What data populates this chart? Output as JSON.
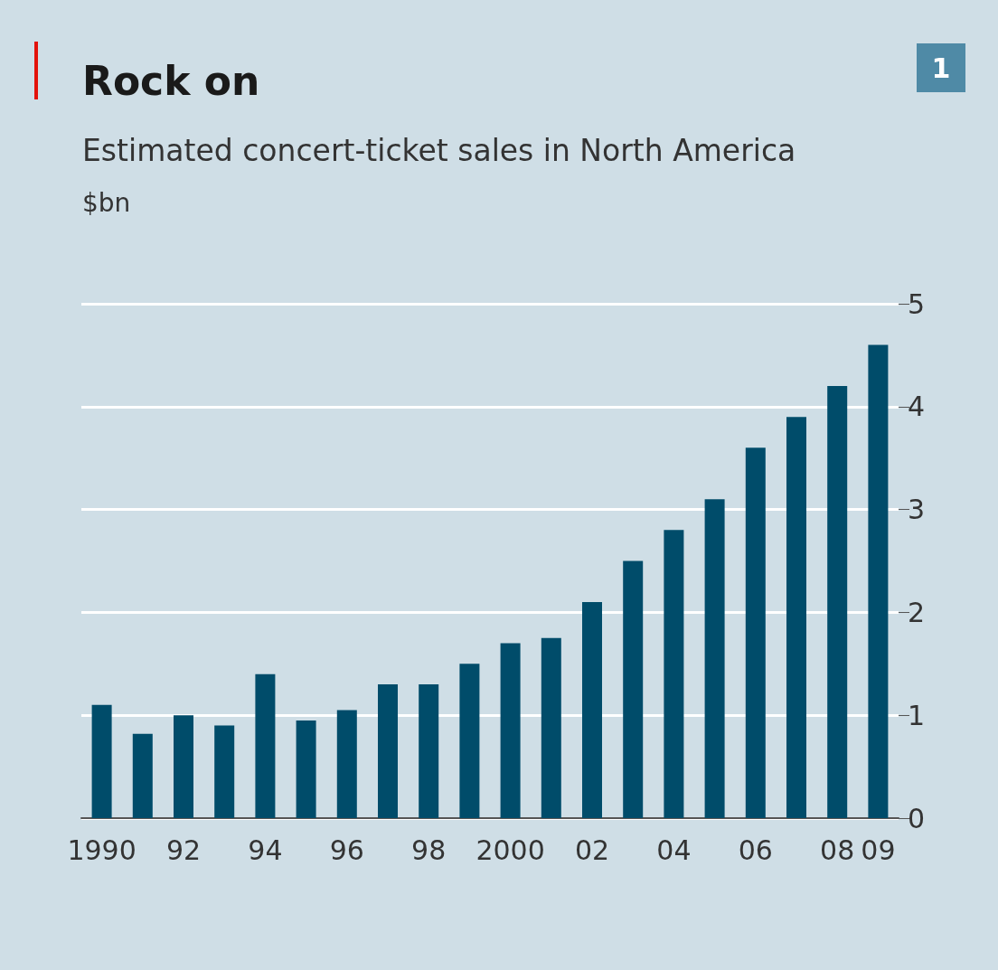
{
  "chart_data": {
    "type": "bar",
    "title": "Rock on",
    "subtitle": "Estimated concert-ticket sales in North America",
    "ylabel": "$bn",
    "annotations": [
      "1"
    ],
    "categories": [
      "1990",
      null,
      "92",
      null,
      "94",
      null,
      "96",
      null,
      "98",
      null,
      "2000",
      null,
      "02",
      null,
      "04",
      null,
      "06",
      null,
      "08",
      "09"
    ],
    "values": [
      1.1,
      0.82,
      1.0,
      0.9,
      1.4,
      0.95,
      1.05,
      1.3,
      1.3,
      1.5,
      1.7,
      1.75,
      2.1,
      2.5,
      2.8,
      3.1,
      3.6,
      3.9,
      4.2,
      4.6
    ],
    "color": "#004c6a",
    "ylim": [
      0,
      5
    ],
    "yticks": [
      0,
      1,
      2,
      3,
      4,
      5
    ],
    "grid": "y"
  }
}
